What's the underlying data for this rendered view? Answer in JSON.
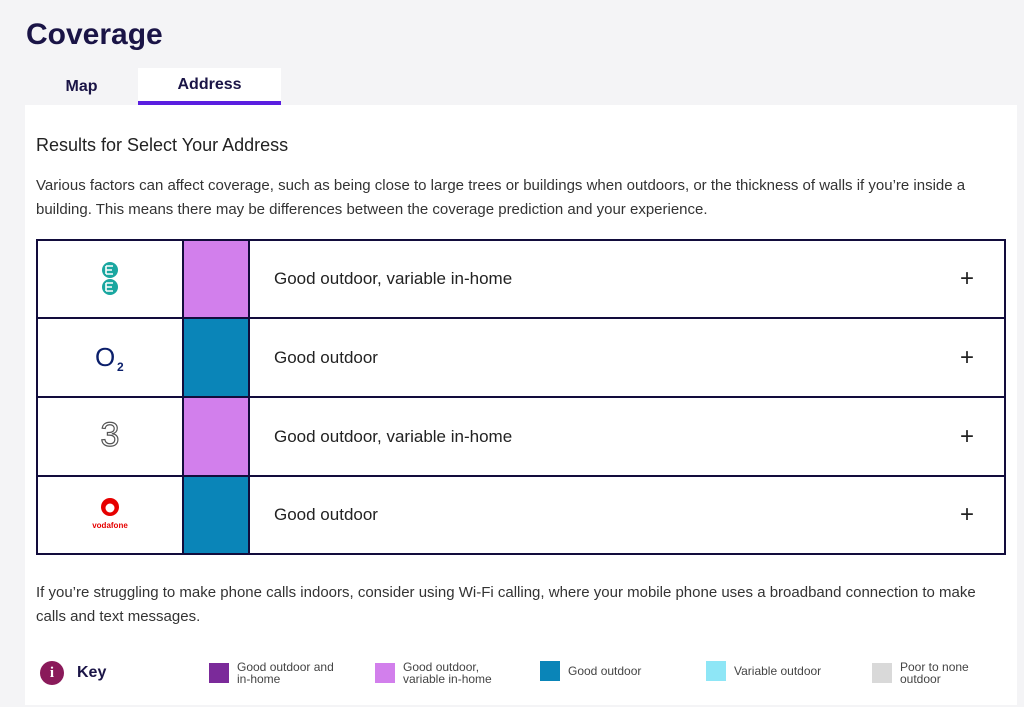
{
  "header": {
    "title": "Coverage"
  },
  "tabs": [
    {
      "label": "Map",
      "active": false
    },
    {
      "label": "Address",
      "active": true
    }
  ],
  "panel": {
    "heading": "Results for Select Your Address",
    "intro": "Various factors can affect coverage, such as being close to large trees or buildings when outdoors, or the thickness of walls if you’re inside a building. This means there may be differences between the coverage prediction and your experience.",
    "rows": [
      {
        "logo": "EE",
        "color": "#d27fec",
        "status": "Good outdoor, variable in-home",
        "toggle": "+"
      },
      {
        "logo": "O2",
        "logo_main": "O",
        "logo_sub": "2",
        "color": "#0a85b8",
        "status": "Good outdoor",
        "toggle": "+"
      },
      {
        "logo": "3",
        "logo_text": "3",
        "color": "#d27fec",
        "status": "Good outdoor, variable in-home",
        "toggle": "+"
      },
      {
        "logo": "vodafone",
        "logo_text": "vodafone",
        "color": "#0a85b8",
        "status": "Good outdoor",
        "toggle": "+"
      }
    ],
    "footer": "If you’re struggling to make phone calls indoors, consider using Wi-Fi calling, where your mobile phone uses a broadband connection to make calls and text messages.",
    "key": {
      "icon": "i",
      "title": "Key",
      "items": [
        {
          "label": "Good outdoor and in-home",
          "color": "#7b2a9a"
        },
        {
          "label": "Good outdoor, variable in-home",
          "color": "#d27fec"
        },
        {
          "label": "Good outdoor",
          "color": "#0a85b8"
        },
        {
          "label": "Variable outdoor",
          "color": "#8ee6f6"
        },
        {
          "label": "Poor to none outdoor",
          "color": "#d9d9d9"
        }
      ]
    }
  }
}
